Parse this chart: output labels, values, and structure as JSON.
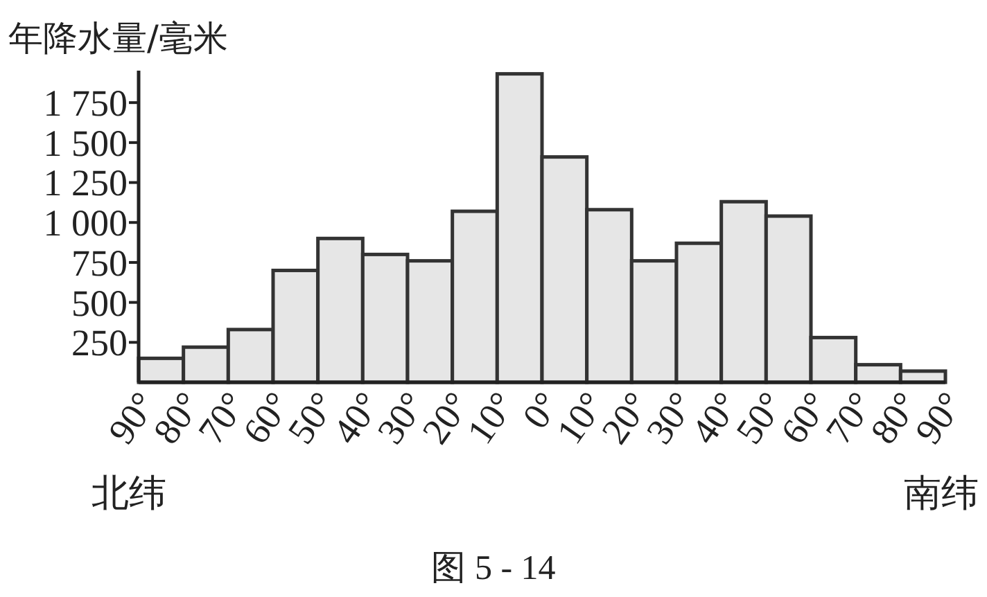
{
  "chart_data": {
    "type": "histogram",
    "title": "图 5 - 14",
    "ylabel": "年降水量/毫米",
    "annotations": [
      "北纬",
      "南纬"
    ],
    "bins": [
      90,
      80,
      70,
      60,
      50,
      40,
      30,
      20,
      10,
      0,
      -10,
      -20,
      -30,
      -40,
      -50,
      -60,
      -70,
      -80,
      -90
    ],
    "values": [
      150,
      220,
      330,
      700,
      900,
      800,
      760,
      1070,
      1930,
      1410,
      1080,
      760,
      870,
      1130,
      1040,
      280,
      110,
      70
    ],
    "color": "#e6e6e6",
    "xlim": [
      90,
      -90
    ],
    "xticks": [
      {
        "value": 90,
        "label": "90°"
      },
      {
        "value": 80,
        "label": "80°"
      },
      {
        "value": 70,
        "label": "70°"
      },
      {
        "value": 60,
        "label": "60°"
      },
      {
        "value": 50,
        "label": "50°"
      },
      {
        "value": 40,
        "label": "40°"
      },
      {
        "value": 30,
        "label": "30°"
      },
      {
        "value": 20,
        "label": "20°"
      },
      {
        "value": 10,
        "label": "10°"
      },
      {
        "value": 0,
        "label": "0°"
      },
      {
        "value": -10,
        "label": "10°"
      },
      {
        "value": -20,
        "label": "20°"
      },
      {
        "value": -30,
        "label": "30°"
      },
      {
        "value": -40,
        "label": "40°"
      },
      {
        "value": -50,
        "label": "50°"
      },
      {
        "value": -60,
        "label": "60°"
      },
      {
        "value": -70,
        "label": "70°"
      },
      {
        "value": -80,
        "label": "80°"
      },
      {
        "value": -90,
        "label": "90°"
      }
    ],
    "ylim": [
      0,
      1950
    ],
    "yticks": [
      250,
      500,
      750,
      {
        "value": 1000,
        "label": "1 000"
      },
      {
        "value": 1250,
        "label": "1 250"
      },
      {
        "value": 1500,
        "label": "1 500"
      },
      {
        "value": 1750,
        "label": "1 750"
      }
    ]
  }
}
